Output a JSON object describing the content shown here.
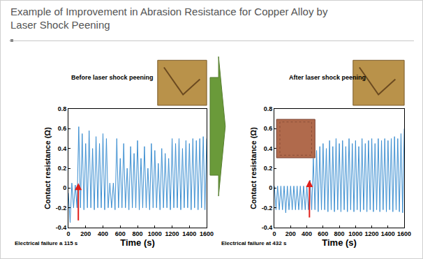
{
  "header": {
    "title": [
      "Example of Improvement in Abrasion Resistance for Copper Alloy by",
      "Laser Shock Peening"
    ]
  },
  "chart_data": [
    {
      "type": "line",
      "title": "Before laser shock peening",
      "x_label": "Time (s)",
      "y_label": "Contact resistance (Ω)",
      "color": "#3d8fd1",
      "grid": false,
      "x": [
        0,
        20,
        40,
        60,
        80,
        100,
        120,
        140,
        160,
        180,
        200,
        220,
        240,
        260,
        280,
        300,
        320,
        340,
        360,
        380,
        400,
        420,
        440,
        460,
        480,
        500,
        520,
        540,
        560,
        580,
        600,
        620,
        640,
        660,
        680,
        700,
        720,
        740,
        760,
        780,
        800,
        820,
        840,
        860,
        880,
        900,
        920,
        940,
        960,
        980,
        1000,
        1020,
        1040,
        1060,
        1080,
        1100,
        1120,
        1140,
        1160,
        1180,
        1200,
        1220,
        1240,
        1260,
        1280,
        1300,
        1320,
        1340,
        1360,
        1380,
        1400,
        1420,
        1440,
        1460,
        1480,
        1500,
        1520,
        1540,
        1560,
        1580,
        1600
      ],
      "values": [
        -0.05,
        -0.35,
        0.05,
        -0.2,
        0.03,
        -0.2,
        0.62,
        -0.2,
        0.55,
        -0.22,
        0.45,
        -0.2,
        0.58,
        -0.2,
        0.4,
        -0.22,
        0.52,
        -0.2,
        0.45,
        -0.2,
        0.55,
        -0.22,
        0.5,
        -0.2,
        0.05,
        -0.2,
        0.05,
        -0.22,
        0.5,
        -0.2,
        0.3,
        -0.2,
        0.45,
        -0.2,
        0.2,
        -0.22,
        0.42,
        -0.2,
        0.35,
        -0.2,
        0.48,
        -0.22,
        0.3,
        -0.2,
        0.42,
        -0.2,
        0.2,
        -0.22,
        0.45,
        -0.2,
        0.38,
        -0.2,
        0.25,
        -0.22,
        0.4,
        -0.2,
        0.35,
        -0.2,
        0.3,
        -0.22,
        0.5,
        -0.2,
        0.45,
        -0.2,
        0.5,
        -0.22,
        0.4,
        -0.2,
        0.48,
        -0.2,
        0.45,
        -0.22,
        0.5,
        -0.2,
        0.48,
        -0.22,
        0.5,
        -0.2,
        0.52,
        -0.22,
        0.5
      ],
      "xlim": [
        0,
        1600
      ],
      "xticks": [
        0,
        200,
        400,
        600,
        800,
        1000,
        1200,
        1400,
        1600
      ],
      "ylim": [
        -0.4,
        0.8
      ],
      "yticks": [
        -0.4,
        -0.2,
        0,
        0.2,
        0.4,
        0.6,
        0.8
      ],
      "annotations": [
        {
          "text": "Electrical failure a 115 s",
          "x": 115,
          "y": 0.05
        }
      ]
    },
    {
      "type": "line",
      "title": "After laser shock peening",
      "x_label": "Time (s)",
      "y_label": "Contact resistance (Ω)",
      "color": "#3d8fd1",
      "grid": false,
      "x": [
        0,
        20,
        40,
        60,
        80,
        100,
        120,
        140,
        160,
        180,
        200,
        220,
        240,
        260,
        280,
        300,
        320,
        340,
        360,
        380,
        400,
        420,
        440,
        460,
        480,
        500,
        520,
        540,
        560,
        580,
        600,
        620,
        640,
        660,
        680,
        700,
        720,
        740,
        760,
        780,
        800,
        820,
        840,
        860,
        880,
        900,
        920,
        940,
        960,
        980,
        1000,
        1020,
        1040,
        1060,
        1080,
        1100,
        1120,
        1140,
        1160,
        1180,
        1200,
        1220,
        1240,
        1260,
        1280,
        1300,
        1320,
        1340,
        1360,
        1380,
        1400,
        1420,
        1440,
        1460,
        1480,
        1500,
        1520,
        1540,
        1560,
        1580,
        1600
      ],
      "values": [
        0.02,
        -0.22,
        0.02,
        -0.22,
        0.02,
        -0.22,
        0.02,
        -0.25,
        0.02,
        -0.22,
        0.02,
        -0.22,
        0.02,
        -0.22,
        0.02,
        -0.22,
        0.02,
        -0.22,
        0.02,
        -0.22,
        0.02,
        -0.22,
        0.08,
        -0.22,
        0.3,
        -0.22,
        0.38,
        -0.24,
        0.42,
        -0.22,
        0.45,
        -0.22,
        0.4,
        -0.24,
        0.48,
        -0.22,
        0.42,
        -0.24,
        0.5,
        -0.22,
        0.45,
        -0.24,
        0.48,
        -0.22,
        0.42,
        -0.24,
        0.5,
        -0.22,
        0.45,
        -0.24,
        0.48,
        -0.22,
        0.42,
        -0.24,
        0.5,
        -0.22,
        0.45,
        -0.24,
        0.48,
        -0.22,
        0.5,
        -0.24,
        0.45,
        -0.22,
        0.5,
        -0.24,
        0.48,
        -0.22,
        0.5,
        -0.24,
        0.48,
        -0.22,
        0.5,
        -0.24,
        0.52,
        -0.22,
        0.5,
        -0.24,
        0.55,
        -0.25,
        0.6
      ],
      "xlim": [
        0,
        1600
      ],
      "xticks": [
        0,
        200,
        400,
        600,
        800,
        1000,
        1200,
        1400,
        1600
      ],
      "ylim": [
        -0.4,
        0.8
      ],
      "yticks": [
        -0.4,
        -0.2,
        0,
        0.2,
        0.4,
        0.6,
        0.8
      ],
      "annotations": [
        {
          "text": "Electrical failure at 432 s",
          "x": 432,
          "y": 0.08
        }
      ]
    }
  ]
}
